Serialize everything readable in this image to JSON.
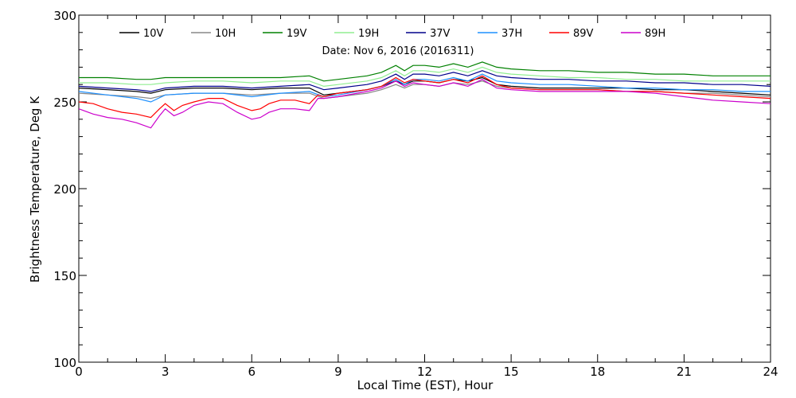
{
  "chart_data": {
    "type": "line",
    "title": "Date: Nov  6, 2016 (2016311)",
    "xlabel": "Local Time (EST), Hour",
    "ylabel": "Brightness Temperature, Deg  K",
    "xlim": [
      0,
      24
    ],
    "ylim": [
      100,
      300
    ],
    "xticks": [
      0,
      3,
      6,
      9,
      12,
      15,
      18,
      21,
      24
    ],
    "yticks": [
      100,
      150,
      200,
      250,
      300
    ],
    "grid": false,
    "legend_position": "top",
    "series": [
      {
        "name": "10V",
        "color": "#000000",
        "x": [
          0,
          1,
          2,
          2.5,
          3,
          4,
          5,
          6,
          7,
          8,
          8.5,
          9,
          10,
          10.5,
          11,
          11.3,
          11.6,
          12,
          12.5,
          13,
          13.5,
          14,
          14.5,
          15,
          16,
          17,
          18,
          19,
          20,
          21,
          22,
          23,
          24
        ],
        "y": [
          258,
          257,
          256,
          255,
          257,
          258,
          258,
          257,
          258,
          258,
          254,
          255,
          257,
          259,
          262,
          260,
          262,
          262,
          261,
          263,
          262,
          264,
          260,
          259,
          258,
          258,
          258,
          258,
          257,
          257,
          256,
          255,
          254
        ]
      },
      {
        "name": "10H",
        "color": "#888888",
        "x": [
          0,
          1,
          2,
          2.5,
          3,
          4,
          5,
          6,
          7,
          8,
          8.5,
          9,
          10,
          10.5,
          11,
          11.3,
          11.6,
          12,
          12.5,
          13,
          13.5,
          14,
          14.5,
          15,
          16,
          17,
          18,
          19,
          20,
          21,
          22,
          23,
          24
        ],
        "y": [
          255,
          254,
          253,
          252,
          254,
          255,
          255,
          254,
          255,
          255,
          252,
          253,
          255,
          257,
          260,
          258,
          260,
          260,
          259,
          261,
          260,
          262,
          259,
          258,
          257,
          257,
          257,
          256,
          256,
          255,
          255,
          254,
          253
        ]
      },
      {
        "name": "19V",
        "color": "#008000",
        "x": [
          0,
          1,
          2,
          2.5,
          3,
          4,
          5,
          6,
          7,
          8,
          8.5,
          9,
          10,
          10.5,
          11,
          11.3,
          11.6,
          12,
          12.5,
          13,
          13.5,
          14,
          14.5,
          15,
          16,
          17,
          18,
          19,
          20,
          21,
          22,
          23,
          24
        ],
        "y": [
          264,
          264,
          263,
          263,
          264,
          264,
          264,
          264,
          264,
          265,
          262,
          263,
          265,
          267,
          271,
          268,
          271,
          271,
          270,
          272,
          270,
          273,
          270,
          269,
          268,
          268,
          267,
          267,
          266,
          266,
          265,
          265,
          265
        ]
      },
      {
        "name": "19H",
        "color": "#90ee90",
        "x": [
          0,
          1,
          2,
          2.5,
          3,
          4,
          5,
          6,
          7,
          8,
          8.5,
          9,
          10,
          10.5,
          11,
          11.3,
          11.6,
          12,
          12.5,
          13,
          13.5,
          14,
          14.5,
          15,
          16,
          17,
          18,
          19,
          20,
          21,
          22,
          23,
          24
        ],
        "y": [
          261,
          261,
          260,
          260,
          261,
          262,
          262,
          261,
          262,
          262,
          259,
          260,
          262,
          264,
          268,
          265,
          268,
          268,
          267,
          269,
          267,
          270,
          267,
          266,
          265,
          264,
          264,
          263,
          263,
          262,
          262,
          262,
          262
        ]
      },
      {
        "name": "37V",
        "color": "#00008b",
        "x": [
          0,
          1,
          2,
          2.5,
          3,
          4,
          5,
          6,
          7,
          8,
          8.5,
          9,
          10,
          10.5,
          11,
          11.3,
          11.6,
          12,
          12.5,
          13,
          13.5,
          14,
          14.5,
          15,
          16,
          17,
          18,
          19,
          20,
          21,
          22,
          23,
          24
        ],
        "y": [
          259,
          258,
          257,
          256,
          258,
          259,
          259,
          258,
          259,
          260,
          257,
          258,
          260,
          262,
          266,
          263,
          266,
          266,
          265,
          267,
          265,
          268,
          265,
          264,
          263,
          263,
          262,
          262,
          261,
          261,
          260,
          260,
          259
        ]
      },
      {
        "name": "37H",
        "color": "#1e90ff",
        "x": [
          0,
          1,
          2,
          2.5,
          3,
          4,
          5,
          6,
          7,
          8,
          8.5,
          9,
          10,
          10.5,
          11,
          11.3,
          11.6,
          12,
          12.5,
          13,
          13.5,
          14,
          14.5,
          15,
          16,
          17,
          18,
          19,
          20,
          21,
          22,
          23,
          24
        ],
        "y": [
          256,
          254,
          252,
          250,
          254,
          255,
          255,
          253,
          255,
          256,
          253,
          254,
          257,
          259,
          263,
          260,
          263,
          263,
          262,
          264,
          262,
          266,
          262,
          261,
          260,
          260,
          259,
          258,
          258,
          257,
          257,
          256,
          256
        ]
      },
      {
        "name": "89V",
        "color": "#ff0000",
        "x": [
          0,
          0.5,
          1,
          1.5,
          2,
          2.5,
          2.8,
          3,
          3.3,
          3.6,
          4,
          4.5,
          5,
          5.5,
          6,
          6.3,
          6.6,
          7,
          7.5,
          8,
          8.3,
          8.5,
          9,
          10,
          10.5,
          11,
          11.3,
          11.6,
          12,
          12.5,
          13,
          13.5,
          14,
          14.5,
          15,
          16,
          17,
          18,
          19,
          20,
          21,
          22,
          23,
          24
        ],
        "y": [
          250,
          249,
          246,
          244,
          243,
          241,
          246,
          249,
          245,
          248,
          250,
          252,
          252,
          248,
          245,
          246,
          249,
          251,
          251,
          249,
          254,
          253,
          255,
          257,
          259,
          264,
          261,
          263,
          262,
          261,
          263,
          261,
          265,
          260,
          258,
          257,
          257,
          257,
          256,
          256,
          255,
          254,
          253,
          252
        ]
      },
      {
        "name": "89H",
        "color": "#cc00cc",
        "x": [
          0,
          0.5,
          1,
          1.5,
          2,
          2.5,
          2.8,
          3,
          3.3,
          3.6,
          4,
          4.5,
          5,
          5.5,
          6,
          6.3,
          6.6,
          7,
          7.5,
          8,
          8.3,
          8.5,
          9,
          10,
          10.5,
          11,
          11.3,
          11.6,
          12,
          12.5,
          13,
          13.5,
          14,
          14.5,
          15,
          16,
          17,
          18,
          19,
          20,
          21,
          22,
          23,
          24
        ],
        "y": [
          246,
          243,
          241,
          240,
          238,
          235,
          242,
          246,
          242,
          244,
          248,
          250,
          249,
          244,
          240,
          241,
          244,
          246,
          246,
          245,
          252,
          252,
          253,
          256,
          258,
          262,
          259,
          261,
          260,
          259,
          261,
          259,
          263,
          258,
          257,
          256,
          256,
          256,
          256,
          255,
          253,
          251,
          250,
          249
        ]
      }
    ]
  }
}
